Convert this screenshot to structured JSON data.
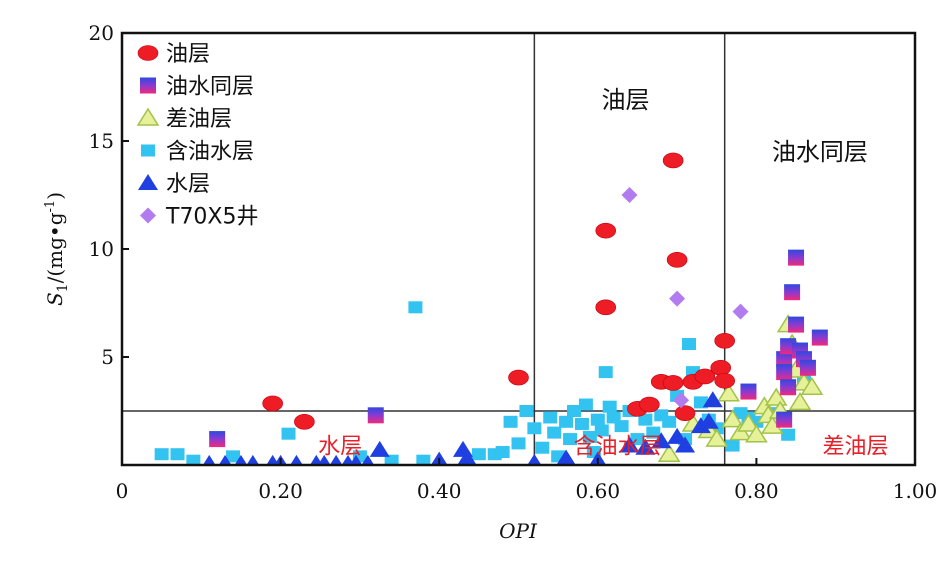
{
  "chart_data": {
    "type": "scatter",
    "xlabel": "OPI",
    "ylabel": {
      "main": "S",
      "sub": "1",
      "unit_prefix": "/(mg•g",
      "unit_sup": "-1",
      "unit_suffix": ")"
    },
    "xlim": [
      0,
      1.0
    ],
    "ylim": [
      0,
      20
    ],
    "x_ticks": [
      {
        "v": 0,
        "label": "0"
      },
      {
        "v": 0.2,
        "label": "0.20"
      },
      {
        "v": 0.4,
        "label": "0.40"
      },
      {
        "v": 0.6,
        "label": "0.60"
      },
      {
        "v": 0.8,
        "label": "0.80"
      },
      {
        "v": 1.0,
        "label": "1.00"
      }
    ],
    "y_ticks": [
      {
        "v": 5,
        "label": "5"
      },
      {
        "v": 10,
        "label": "10"
      },
      {
        "v": 15,
        "label": "15"
      },
      {
        "v": 20,
        "label": "20"
      }
    ],
    "grid": false,
    "legend_position": "top-left",
    "divider_lines": {
      "vertical_x": [
        0.52,
        0.76
      ],
      "horizontal_y": 2.5
    },
    "region_labels": [
      {
        "text": "油层",
        "x": 0.635,
        "y": 16.9,
        "color": "black"
      },
      {
        "text": "油水同层",
        "x": 0.88,
        "y": 14.5,
        "color": "black"
      },
      {
        "text": "水层",
        "x": 0.275,
        "y": 0.9,
        "color": "red"
      },
      {
        "text": "含油水层",
        "x": 0.625,
        "y": 0.9,
        "color": "red"
      },
      {
        "text": "差油层",
        "x": 0.925,
        "y": 0.9,
        "color": "red"
      }
    ],
    "series": [
      {
        "name": "油层",
        "marker": "ellipse",
        "points": [
          [
            0.19,
            2.85
          ],
          [
            0.23,
            2.0
          ],
          [
            0.5,
            4.05
          ],
          [
            0.61,
            10.85
          ],
          [
            0.61,
            7.3
          ],
          [
            0.65,
            2.6
          ],
          [
            0.665,
            2.8
          ],
          [
            0.68,
            3.85
          ],
          [
            0.695,
            3.8
          ],
          [
            0.695,
            14.1
          ],
          [
            0.7,
            9.5
          ],
          [
            0.71,
            2.4
          ],
          [
            0.72,
            3.85
          ],
          [
            0.735,
            4.1
          ],
          [
            0.755,
            4.5
          ],
          [
            0.76,
            5.75
          ],
          [
            0.76,
            3.9
          ]
        ]
      },
      {
        "name": "油水同层",
        "marker": "square",
        "points": [
          [
            0.12,
            1.2
          ],
          [
            0.32,
            2.3
          ],
          [
            0.79,
            3.4
          ],
          [
            0.835,
            4.9
          ],
          [
            0.835,
            4.3
          ],
          [
            0.84,
            5.5
          ],
          [
            0.845,
            8.0
          ],
          [
            0.85,
            9.6
          ],
          [
            0.85,
            6.5
          ],
          [
            0.855,
            5.3
          ],
          [
            0.86,
            4.9
          ],
          [
            0.865,
            4.5
          ],
          [
            0.88,
            5.9
          ],
          [
            0.835,
            2.1
          ],
          [
            0.84,
            3.6
          ]
        ]
      },
      {
        "name": "差油层",
        "marker": "triangle-hollow",
        "points": [
          [
            0.69,
            0.5
          ],
          [
            0.72,
            1.9
          ],
          [
            0.74,
            1.6
          ],
          [
            0.75,
            1.2
          ],
          [
            0.765,
            3.3
          ],
          [
            0.77,
            2.1
          ],
          [
            0.78,
            1.5
          ],
          [
            0.79,
            1.9
          ],
          [
            0.8,
            1.4
          ],
          [
            0.81,
            2.7
          ],
          [
            0.815,
            2.3
          ],
          [
            0.82,
            1.8
          ],
          [
            0.825,
            3.1
          ],
          [
            0.83,
            2.5
          ],
          [
            0.84,
            6.5
          ],
          [
            0.845,
            5.6
          ],
          [
            0.85,
            4.4
          ],
          [
            0.855,
            2.9
          ],
          [
            0.86,
            3.8
          ],
          [
            0.87,
            3.6
          ]
        ]
      },
      {
        "name": "含油水层",
        "marker": "square-small",
        "points": [
          [
            0.05,
            0.5
          ],
          [
            0.07,
            0.5
          ],
          [
            0.09,
            0.2
          ],
          [
            0.14,
            0.4
          ],
          [
            0.21,
            1.45
          ],
          [
            0.3,
            0.4
          ],
          [
            0.34,
            0.2
          ],
          [
            0.37,
            7.3
          ],
          [
            0.38,
            0.2
          ],
          [
            0.45,
            0.5
          ],
          [
            0.47,
            0.5
          ],
          [
            0.48,
            0.6
          ],
          [
            0.49,
            2.0
          ],
          [
            0.5,
            1.0
          ],
          [
            0.51,
            2.5
          ],
          [
            0.52,
            1.7
          ],
          [
            0.53,
            0.8
          ],
          [
            0.54,
            2.2
          ],
          [
            0.545,
            1.5
          ],
          [
            0.55,
            0.4
          ],
          [
            0.56,
            2.0
          ],
          [
            0.565,
            1.2
          ],
          [
            0.57,
            2.5
          ],
          [
            0.58,
            1.9
          ],
          [
            0.585,
            2.8
          ],
          [
            0.59,
            1.3
          ],
          [
            0.595,
            0.6
          ],
          [
            0.6,
            2.1
          ],
          [
            0.605,
            1.6
          ],
          [
            0.61,
            4.3
          ],
          [
            0.615,
            2.7
          ],
          [
            0.62,
            2.2
          ],
          [
            0.63,
            1.8
          ],
          [
            0.64,
            2.5
          ],
          [
            0.65,
            1.2
          ],
          [
            0.66,
            2.1
          ],
          [
            0.67,
            1.5
          ],
          [
            0.68,
            2.3
          ],
          [
            0.69,
            2.0
          ],
          [
            0.7,
            3.2
          ],
          [
            0.71,
            1.2
          ],
          [
            0.715,
            5.6
          ],
          [
            0.72,
            4.3
          ],
          [
            0.73,
            2.9
          ],
          [
            0.74,
            2.1
          ],
          [
            0.75,
            1.7
          ],
          [
            0.77,
            0.9
          ],
          [
            0.78,
            2.4
          ],
          [
            0.79,
            2.2
          ],
          [
            0.8,
            2.0
          ],
          [
            0.82,
            2.4
          ],
          [
            0.84,
            1.4
          ],
          [
            0.86,
            4.0
          ]
        ]
      },
      {
        "name": "水层",
        "marker": "triangle",
        "points": [
          [
            0.11,
            0.05
          ],
          [
            0.13,
            0.05
          ],
          [
            0.15,
            0.05
          ],
          [
            0.165,
            0.05
          ],
          [
            0.19,
            0.05
          ],
          [
            0.2,
            0.05
          ],
          [
            0.22,
            0.05
          ],
          [
            0.245,
            0.05
          ],
          [
            0.255,
            0.05
          ],
          [
            0.27,
            0.05
          ],
          [
            0.285,
            0.05
          ],
          [
            0.295,
            0.05
          ],
          [
            0.31,
            0.05
          ],
          [
            0.325,
            0.7
          ],
          [
            0.4,
            0.2
          ],
          [
            0.43,
            0.7
          ],
          [
            0.435,
            0.3
          ],
          [
            0.52,
            0.1
          ],
          [
            0.56,
            0.3
          ],
          [
            0.6,
            0.2
          ],
          [
            0.64,
            0.9
          ],
          [
            0.66,
            0.8
          ],
          [
            0.68,
            1.1
          ],
          [
            0.7,
            1.3
          ],
          [
            0.71,
            0.9
          ],
          [
            0.73,
            1.8
          ],
          [
            0.74,
            2.0
          ],
          [
            0.745,
            3.0
          ]
        ]
      },
      {
        "name": "T70X5井",
        "marker": "diamond",
        "points": [
          [
            0.64,
            12.5
          ],
          [
            0.7,
            7.7
          ],
          [
            0.705,
            3.0
          ],
          [
            0.78,
            7.1
          ]
        ]
      }
    ]
  }
}
